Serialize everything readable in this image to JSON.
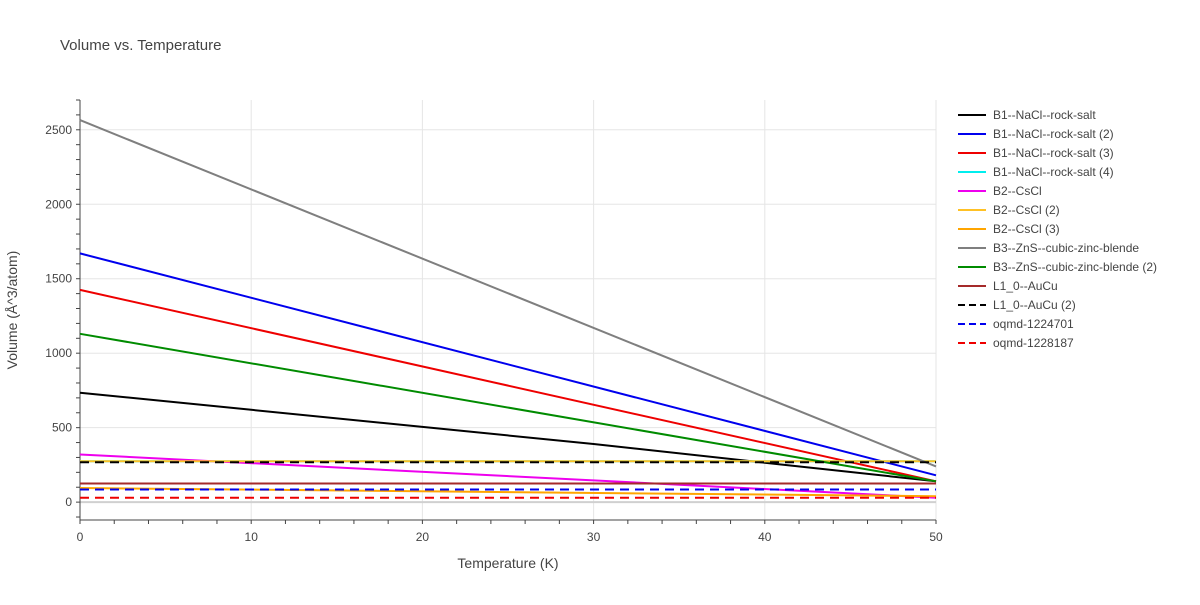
{
  "chart_data": {
    "type": "line",
    "title": "Volume vs. Temperature",
    "xlabel": "Temperature (K)",
    "ylabel": "Volume (Å^3/atom)",
    "xlim": [
      0,
      50
    ],
    "ylim": [
      -120,
      2700
    ],
    "xticks": [
      0,
      10,
      20,
      30,
      40,
      50
    ],
    "yticks": [
      0,
      500,
      1000,
      1500,
      2000,
      2500
    ],
    "grid": true,
    "legend_position": "right",
    "series": [
      {
        "name": "B1--NaCl--rock-salt",
        "color": "#000000",
        "dash": "solid",
        "x": [
          0,
          10,
          20,
          30,
          40,
          50
        ],
        "y": [
          735,
          620,
          505,
          390,
          265,
          140
        ]
      },
      {
        "name": "B1--NaCl--rock-salt (2)",
        "color": "#0000ee",
        "dash": "solid",
        "x": [
          0,
          50
        ],
        "y": [
          1670,
          180
        ]
      },
      {
        "name": "B1--NaCl--rock-salt (3)",
        "color": "#ee0000",
        "dash": "solid",
        "x": [
          0,
          50
        ],
        "y": [
          1425,
          140
        ]
      },
      {
        "name": "B1--NaCl--rock-salt (4)",
        "color": "#00eeee",
        "dash": "solid",
        "x": [
          0,
          50
        ],
        "y": [
          275,
          275
        ]
      },
      {
        "name": "B2--CsCl",
        "color": "#ee00ee",
        "dash": "solid",
        "x": [
          0,
          50
        ],
        "y": [
          320,
          30
        ]
      },
      {
        "name": "B2--CsCl (2)",
        "color": "#ffc125",
        "dash": "solid",
        "x": [
          0,
          50
        ],
        "y": [
          275,
          275
        ]
      },
      {
        "name": "B2--CsCl (3)",
        "color": "#ffa500",
        "dash": "solid",
        "x": [
          0,
          50
        ],
        "y": [
          95,
          40
        ]
      },
      {
        "name": "B3--ZnS--cubic-zinc-blende",
        "color": "#7f7f7f",
        "dash": "solid",
        "x": [
          0,
          50
        ],
        "y": [
          2565,
          240
        ]
      },
      {
        "name": "B3--ZnS--cubic-zinc-blende (2)",
        "color": "#008b00",
        "dash": "solid",
        "x": [
          0,
          50
        ],
        "y": [
          1130,
          140
        ]
      },
      {
        "name": "L1_0--AuCu",
        "color": "#a52a2a",
        "dash": "solid",
        "x": [
          0,
          50
        ],
        "y": [
          125,
          125
        ]
      },
      {
        "name": "L1_0--AuCu (2)",
        "color": "#000000",
        "dash": "dash",
        "x": [
          0,
          50
        ],
        "y": [
          268,
          268
        ]
      },
      {
        "name": "oqmd-1224701",
        "color": "#0000ee",
        "dash": "dash",
        "x": [
          0,
          50
        ],
        "y": [
          85,
          85
        ]
      },
      {
        "name": "oqmd-1228187",
        "color": "#ee0000",
        "dash": "dash",
        "x": [
          0,
          50
        ],
        "y": [
          30,
          30
        ]
      }
    ]
  }
}
